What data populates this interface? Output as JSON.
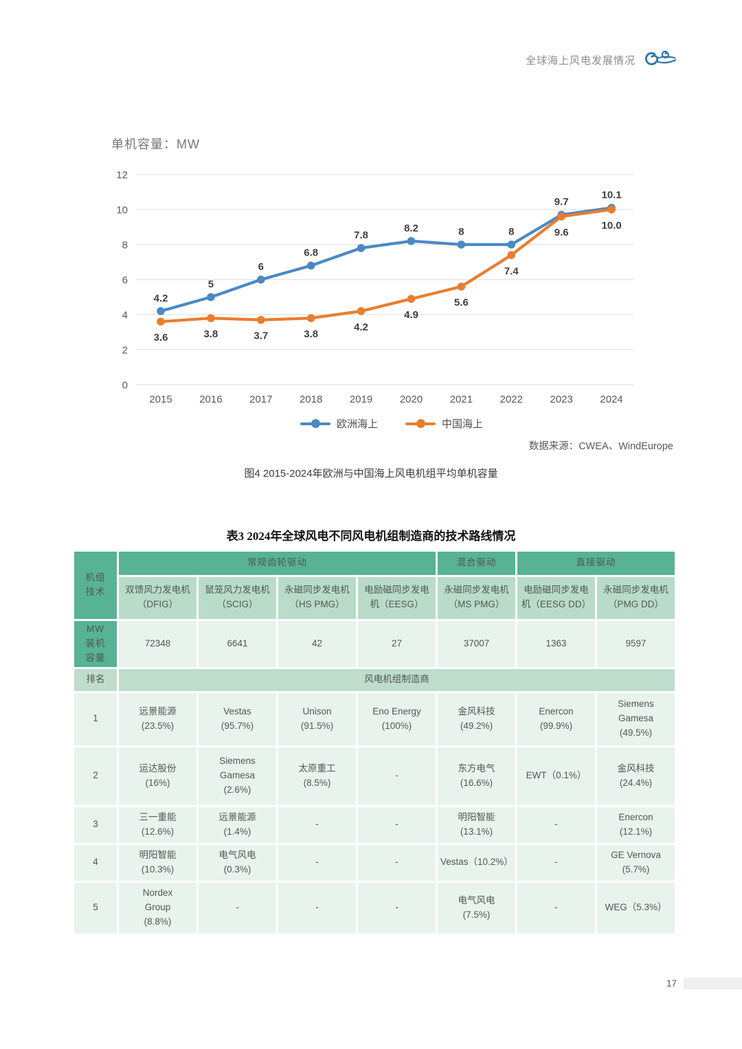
{
  "header": {
    "title": "全球海上风电发展情况"
  },
  "chart": {
    "title": "单机容量：MW",
    "source": "数据来源：CWEA、WindEurope",
    "caption": "图4 2015-2024年欧洲与中国海上风电机组平均单机容量",
    "legend": [
      {
        "label": "欧洲海上",
        "color": "#4a89c4"
      },
      {
        "label": "中国海上",
        "color": "#e97d2e"
      }
    ]
  },
  "chart_data": {
    "type": "line",
    "x": [
      "2015",
      "2016",
      "2017",
      "2018",
      "2019",
      "2020",
      "2021",
      "2022",
      "2023",
      "2024"
    ],
    "series": [
      {
        "name": "欧洲海上",
        "color": "#4a89c4",
        "label_position": "above",
        "values": [
          4.2,
          5,
          6,
          6.8,
          7.8,
          8.2,
          8,
          8,
          9.7,
          10.1
        ],
        "labels": [
          "4.2",
          "5",
          "6",
          "6.8",
          "7.8",
          "8.2",
          "8",
          "8",
          "9.7",
          "10.1"
        ]
      },
      {
        "name": "中国海上",
        "color": "#e97d2e",
        "label_position": "below",
        "values": [
          3.6,
          3.8,
          3.7,
          3.8,
          4.2,
          4.9,
          5.6,
          7.4,
          9.6,
          10.0
        ],
        "labels": [
          "3.6",
          "3.8",
          "3.7",
          "3.8",
          "4.2",
          "4.9",
          "5.6",
          "7.4",
          "9.6",
          "10.0"
        ]
      }
    ],
    "title": "单机容量：MW",
    "xlabel": "",
    "ylabel": "单机容量 MW",
    "ylim": [
      0,
      12
    ],
    "ytick_step": 2,
    "grid": true,
    "legend_position": "bottom"
  },
  "table": {
    "title": "表3 2024年全球风电不同风电机组制造商的技术路线情况",
    "corner_label": "机组\n技术",
    "groups": [
      "常规齿轮驱动",
      "混合驱动",
      "直接驱动"
    ],
    "subheaders": [
      "双馈风力发电机（DFIG）",
      "鼠笼风力发电机（SCIG）",
      "永磁同步发电机（HS PMG）",
      "电励磁同步发电机（EESG）",
      "永磁同步发电机（MS PMG）",
      "电励磁同步发电机（EESG DD）",
      "永磁同步发电机（PMG DD）"
    ],
    "mw_label": "MW\n装机\n容量",
    "mw_values": [
      "72348",
      "6641",
      "42",
      "27",
      "37007",
      "1363",
      "9597"
    ],
    "rank_label": "排名",
    "rank_band": "风电机组制造商",
    "rows": [
      {
        "rank": "1",
        "cells": [
          "远景能源\n(23.5%)",
          "Vestas\n(95.7%)",
          "Unison\n(91.5%)",
          "Eno Energy\n(100%)",
          "金风科技\n(49.2%)",
          "Enercon\n(99.9%)",
          "Siemens\nGamesa\n(49.5%)"
        ]
      },
      {
        "rank": "2",
        "cells": [
          "运达股份\n(16%)",
          "Siemens\nGamesa\n(2.6%)",
          "太原重工\n(8.5%)",
          "-",
          "东方电气\n(16.6%)",
          "EWT（0.1%）",
          "金风科技\n(24.4%)"
        ]
      },
      {
        "rank": "3",
        "cells": [
          "三一重能\n(12.6%)",
          "远景能源\n(1.4%)",
          "-",
          "-",
          "明阳智能\n(13.1%)",
          "-",
          "Enercon\n(12.1%)"
        ]
      },
      {
        "rank": "4",
        "cells": [
          "明阳智能\n(10.3%)",
          "电气风电\n(0.3%)",
          "-",
          "-",
          "Vestas（10.2%）",
          "-",
          "GE Vernova\n(5.7%)"
        ]
      },
      {
        "rank": "5",
        "cells": [
          "Nordex\nGroup\n(8.8%)",
          "-",
          "-",
          "-",
          "电气风电\n(7.5%)",
          "-",
          "WEG（5.3%）"
        ]
      }
    ]
  },
  "footer": {
    "page_number": "17"
  },
  "colors": {
    "series_europe": "#4a89c4",
    "series_china": "#e97d2e",
    "table_header_green": "#57b394",
    "table_subheader_green": "#b9dcca",
    "table_band_green": "#bfdccd",
    "table_cell_green": "#e9f3ee",
    "grid_gray": "#d9d9d9",
    "axis_text": "#595959",
    "logo_blue": "#2e74ae"
  }
}
